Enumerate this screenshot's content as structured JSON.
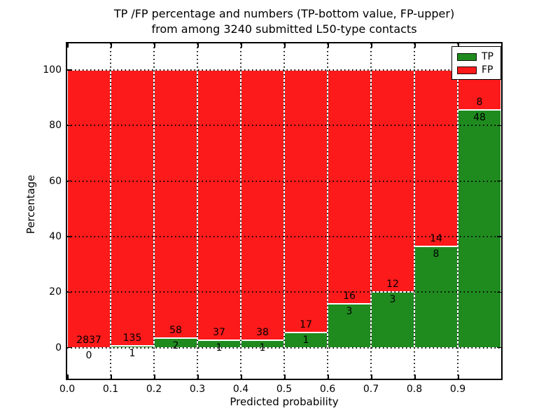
{
  "title": {
    "line1": "TP /FP percentage and numbers (TP-bottom value, FP-upper)",
    "line2": "from among 3240 submitted L50-type contacts"
  },
  "chart_data": {
    "type": "bar",
    "stacked": true,
    "title": "TP /FP percentage and numbers (TP-bottom value, FP-upper) from among 3240 submitted L50-type contacts",
    "xlabel": "Predicted probability",
    "ylabel": "Percentage",
    "bin_start": 0.0,
    "bin_width": 0.1,
    "n_bins": 10,
    "note": "bars show percentage TP vs FP per bin; numeric labels are raw counts (TP bottom, FP upper)",
    "series": [
      {
        "name": "TP",
        "color": "#1f8b1f",
        "counts": [
          0,
          1,
          2,
          1,
          1,
          1,
          3,
          3,
          8,
          48
        ]
      },
      {
        "name": "FP",
        "color": "#fc1a1a",
        "counts": [
          2837,
          135,
          58,
          37,
          38,
          17,
          16,
          12,
          14,
          8
        ]
      }
    ],
    "total_contacts": 3240,
    "xtick_labels": [
      "0.0",
      "0.1",
      "0.2",
      "0.3",
      "0.4",
      "0.5",
      "0.6",
      "0.7",
      "0.8",
      "0.9"
    ],
    "xticks": [
      0.0,
      0.1,
      0.2,
      0.3,
      0.4,
      0.5,
      0.6,
      0.7,
      0.8,
      0.9
    ],
    "yticks": [
      0,
      20,
      40,
      60,
      80,
      100
    ],
    "xlim": [
      0.0,
      1.0
    ],
    "ylim": [
      -11.2,
      109.6
    ],
    "grid": true,
    "grid_style": "dotted",
    "legend_position": "upper right",
    "axis_color": "#000000",
    "background": "#ffffff"
  }
}
